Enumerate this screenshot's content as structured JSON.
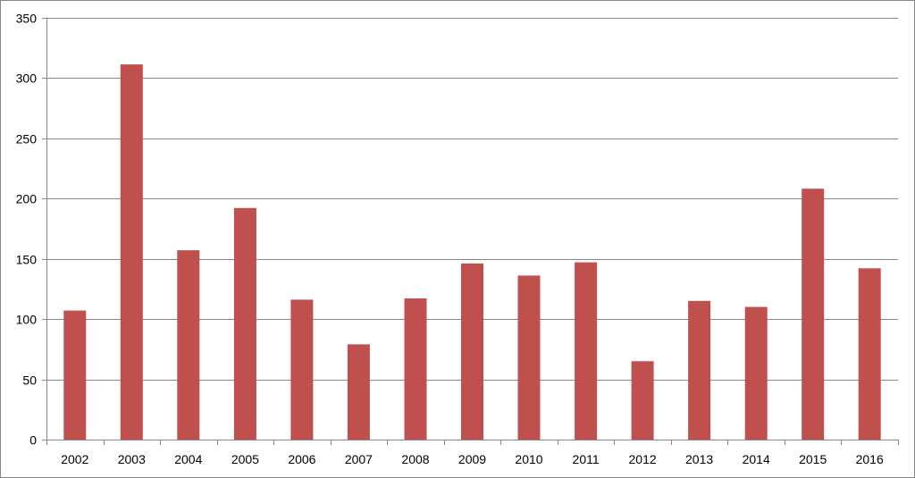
{
  "chart_data": {
    "type": "bar",
    "title": "",
    "xlabel": "",
    "ylabel": "",
    "categories": [
      "2002",
      "2003",
      "2004",
      "2005",
      "2006",
      "2007",
      "2008",
      "2009",
      "2010",
      "2011",
      "2012",
      "2013",
      "2014",
      "2015",
      "2016"
    ],
    "values": [
      107,
      311,
      157,
      192,
      116,
      79,
      117,
      146,
      136,
      147,
      65,
      115,
      110,
      208,
      142
    ],
    "ylim": [
      0,
      350
    ],
    "yticks": [
      "0",
      "50",
      "100",
      "150",
      "200",
      "250",
      "300",
      "350"
    ],
    "grid": true,
    "legend": "none",
    "colors": {
      "bar": "#c0504d",
      "grid": "#868686",
      "axis": "#868686"
    }
  }
}
